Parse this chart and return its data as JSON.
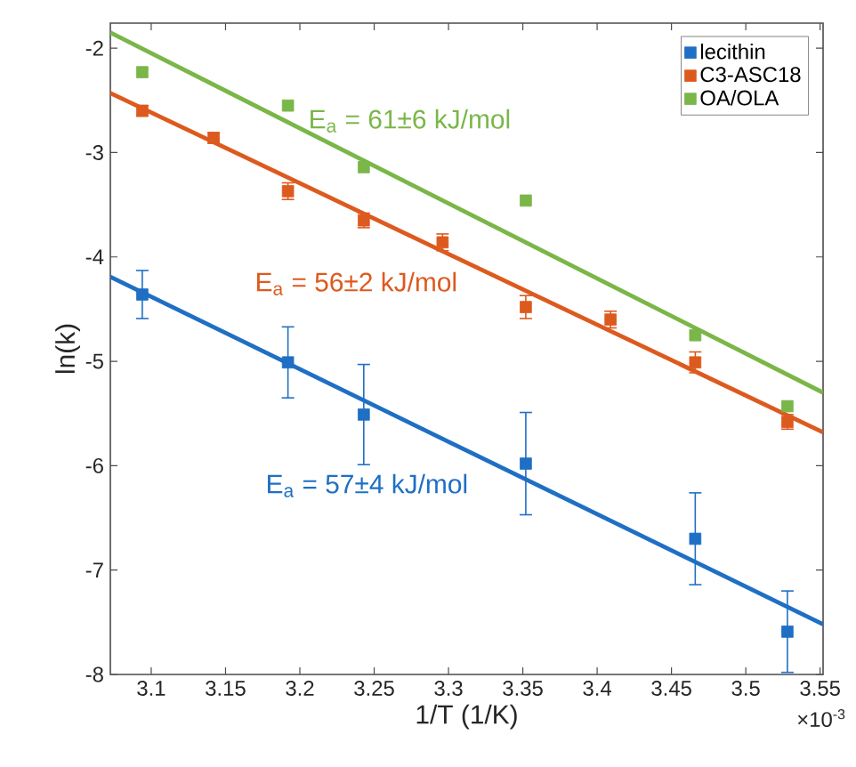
{
  "chart_data": {
    "type": "scatter",
    "xlabel": "1/T (1/K)",
    "ylabel": "ln(k)",
    "xlim": [
      3.0725,
      3.552
    ],
    "ylim": [
      -8,
      -1.76
    ],
    "xticks": [
      3.1,
      3.15,
      3.2,
      3.25,
      3.3,
      3.35,
      3.4,
      3.45,
      3.5,
      3.55
    ],
    "yticks": [
      -8,
      -7,
      -6,
      -5,
      -4,
      -3,
      -2
    ],
    "marker": "square",
    "legend": "top right",
    "grid": false,
    "series": [
      {
        "name": "lecithin",
        "color": "#1f6fc4",
        "x": [
          3.094,
          3.192,
          3.243,
          3.352,
          3.466,
          3.528
        ],
        "values": [
          -4.36,
          -5.01,
          -5.51,
          -5.98,
          -6.7,
          -7.59
        ],
        "errors": [
          0.23,
          0.34,
          0.48,
          0.49,
          0.44,
          0.39
        ]
      },
      {
        "name": "C3-ASC18",
        "color": "#dd5a1e",
        "x": [
          3.094,
          3.142,
          3.192,
          3.243,
          3.296,
          3.352,
          3.409,
          3.466,
          3.528
        ],
        "values": [
          -2.6,
          -2.86,
          -3.37,
          -3.65,
          -3.86,
          -4.48,
          -4.6,
          -5.01,
          -5.58
        ],
        "errors": [
          0.05,
          0.05,
          0.08,
          0.07,
          0.08,
          0.11,
          0.08,
          0.1,
          0.07
        ]
      },
      {
        "name": "OA/OLA",
        "color": "#7ab648",
        "x": [
          3.094,
          3.192,
          3.243,
          3.352,
          3.466,
          3.528
        ],
        "values": [
          -2.23,
          -2.55,
          -3.14,
          -3.46,
          -4.75,
          -5.43
        ]
      },
      {
        "color": "#1f6fc4",
        "type": "line",
        "marker": "none",
        "x": [
          3.0725,
          3.552
        ],
        "values": [
          -4.19,
          -7.52
        ]
      },
      {
        "color": "#dd5a1e",
        "type": "line",
        "marker": "none",
        "x": [
          3.0725,
          3.552
        ],
        "values": [
          -2.43,
          -5.68
        ]
      },
      {
        "color": "#7ab648",
        "type": "line",
        "marker": "none",
        "x": [
          3.0725,
          3.552
        ],
        "values": [
          -1.85,
          -5.3
        ]
      }
    ],
    "annotations": [
      "E$_{a}$ = 61±6 kJ/mol",
      "E$_{a}$ = 56±2 kJ/mol",
      "E$_{a}$ = 57±4 kJ/mol",
      "×10$^{-3}$"
    ]
  }
}
